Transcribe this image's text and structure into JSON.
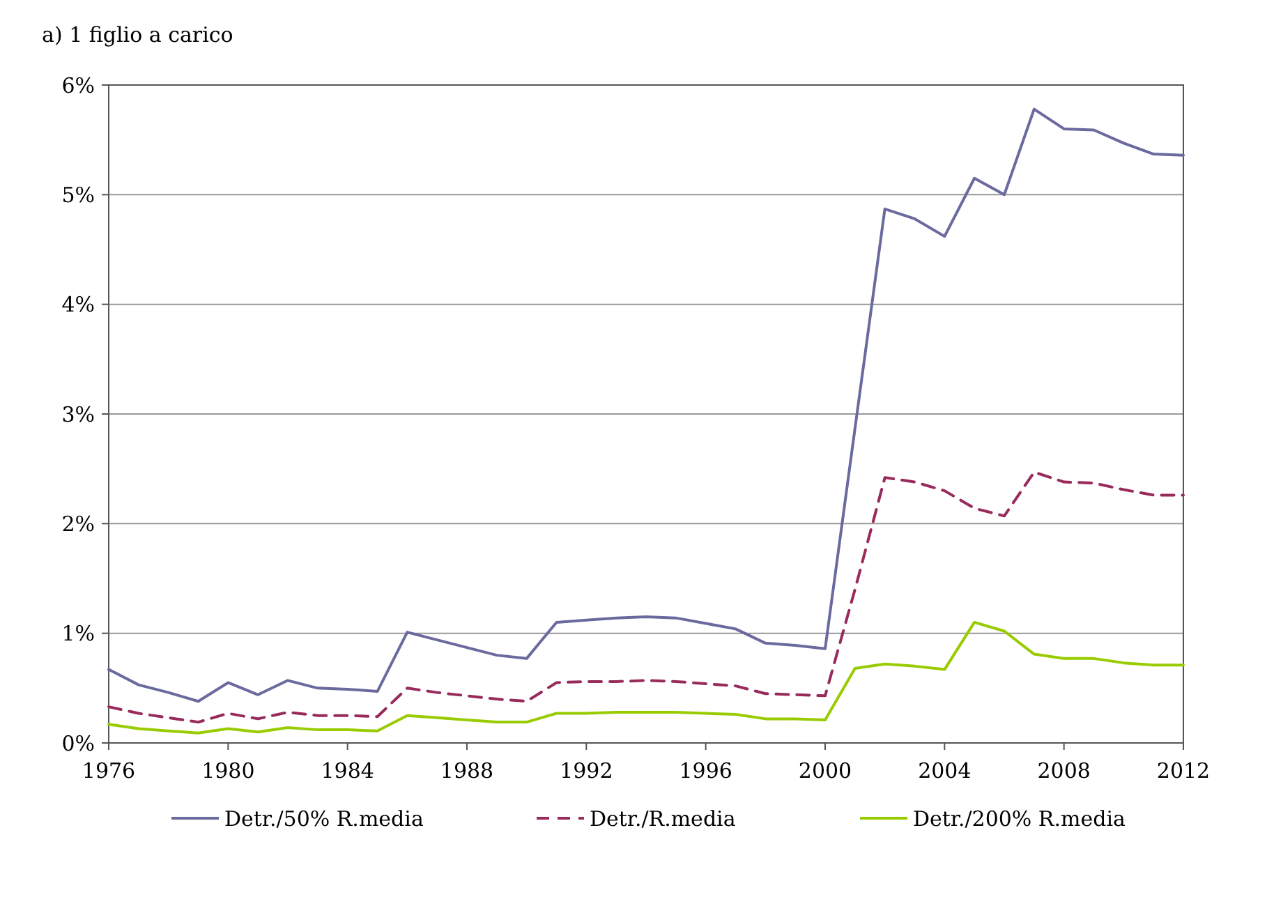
{
  "chart_data": {
    "type": "line",
    "title": "a) 1 figlio a carico",
    "x": [
      1976,
      1977,
      1978,
      1979,
      1980,
      1981,
      1982,
      1983,
      1984,
      1985,
      1986,
      1987,
      1988,
      1989,
      1990,
      1991,
      1992,
      1993,
      1994,
      1995,
      1996,
      1997,
      1998,
      1999,
      2000,
      2001,
      2002,
      2003,
      2004,
      2005,
      2006,
      2007,
      2008,
      2009,
      2010,
      2011,
      2012
    ],
    "xlim": [
      1976,
      2012
    ],
    "xticks": [
      1976,
      1980,
      1984,
      1988,
      1992,
      1996,
      2000,
      2004,
      2008,
      2012
    ],
    "ylim": [
      0,
      6
    ],
    "yticks": [
      {
        "value": 0,
        "label": "0%"
      },
      {
        "value": 1,
        "label": "1%"
      },
      {
        "value": 2,
        "label": "2%"
      },
      {
        "value": 3,
        "label": "3%"
      },
      {
        "value": 4,
        "label": "4%"
      },
      {
        "value": 5,
        "label": "5%"
      },
      {
        "value": 6,
        "label": "6%"
      }
    ],
    "grid": "y",
    "legend": "bottom",
    "marker": "none",
    "series": [
      {
        "name": "Detr./50% R.media",
        "color": "#6a6a9f",
        "line_style": "solid",
        "values": [
          0.67,
          0.53,
          0.46,
          0.38,
          0.55,
          0.44,
          0.57,
          0.5,
          0.49,
          0.47,
          1.01,
          0.94,
          0.87,
          0.8,
          0.77,
          1.1,
          1.12,
          1.14,
          1.15,
          1.14,
          1.09,
          1.04,
          0.91,
          0.89,
          0.86,
          2.87,
          4.87,
          4.78,
          4.62,
          5.15,
          5.0,
          5.78,
          5.6,
          5.59,
          5.47,
          5.37,
          5.36
        ]
      },
      {
        "name": "Detr./R.media",
        "color": "#982b5c",
        "line_style": "dashed",
        "values": [
          0.33,
          0.27,
          0.23,
          0.19,
          0.27,
          0.22,
          0.28,
          0.25,
          0.25,
          0.24,
          0.5,
          0.46,
          0.43,
          0.4,
          0.38,
          0.55,
          0.56,
          0.56,
          0.57,
          0.56,
          0.54,
          0.52,
          0.45,
          0.44,
          0.43,
          1.4,
          2.42,
          2.38,
          2.3,
          2.14,
          2.07,
          2.47,
          2.38,
          2.37,
          2.31,
          2.26,
          2.26
        ]
      },
      {
        "name": "Detr./200% R.media",
        "color": "#99cc00",
        "line_style": "solid",
        "values": [
          0.17,
          0.13,
          0.11,
          0.09,
          0.13,
          0.1,
          0.14,
          0.12,
          0.12,
          0.11,
          0.25,
          0.23,
          0.21,
          0.19,
          0.19,
          0.27,
          0.27,
          0.28,
          0.28,
          0.28,
          0.27,
          0.26,
          0.22,
          0.22,
          0.21,
          0.68,
          0.72,
          0.7,
          0.67,
          1.1,
          1.02,
          0.81,
          0.77,
          0.77,
          0.73,
          0.71,
          0.71
        ]
      }
    ]
  }
}
